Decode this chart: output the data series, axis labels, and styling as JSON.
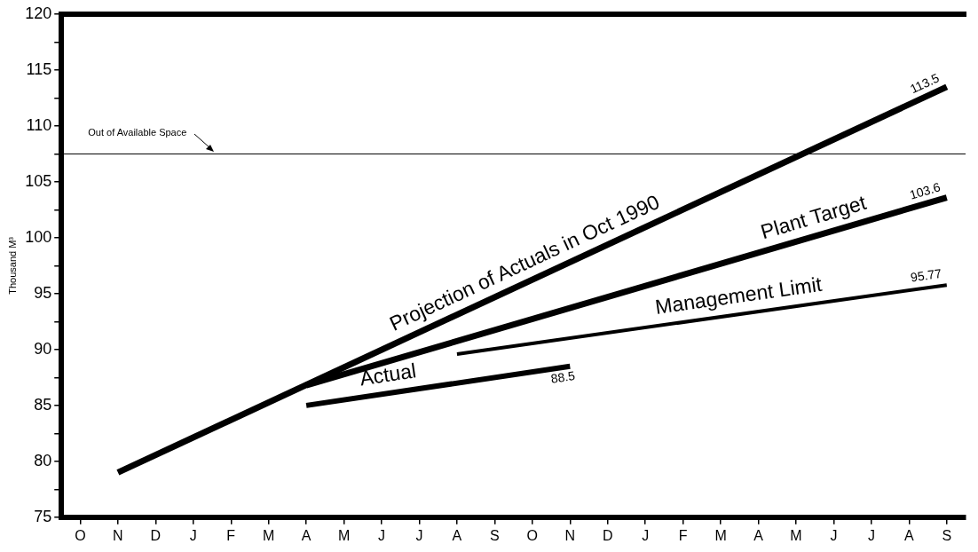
{
  "chart_data": {
    "type": "line",
    "ylabel": "Thousand M³",
    "categories": [
      "O",
      "N",
      "D",
      "J",
      "F",
      "M",
      "A",
      "M",
      "J",
      "J",
      "A",
      "S",
      "O",
      "N",
      "D",
      "J",
      "F",
      "M",
      "A",
      "M",
      "J",
      "J",
      "A",
      "S"
    ],
    "series": [
      {
        "name": "Projection of Actuals in Oct 1990",
        "color": "#000000",
        "values": [
          null,
          79,
          null,
          null,
          null,
          null,
          null,
          null,
          null,
          null,
          null,
          null,
          null,
          null,
          null,
          null,
          null,
          null,
          null,
          null,
          null,
          null,
          null,
          113.5
        ],
        "value_labels": [
          null,
          null,
          null,
          null,
          null,
          null,
          null,
          null,
          null,
          null,
          null,
          null,
          null,
          null,
          null,
          null,
          null,
          null,
          null,
          null,
          null,
          null,
          null,
          "113.5"
        ]
      },
      {
        "name": "Plant Target",
        "color": "#000000",
        "values": [
          null,
          null,
          null,
          null,
          null,
          null,
          86.8,
          null,
          null,
          null,
          null,
          null,
          null,
          null,
          null,
          null,
          null,
          null,
          null,
          null,
          null,
          null,
          null,
          103.6
        ],
        "value_labels": [
          null,
          null,
          null,
          null,
          null,
          null,
          null,
          null,
          null,
          null,
          null,
          null,
          null,
          null,
          null,
          null,
          null,
          null,
          null,
          null,
          null,
          null,
          null,
          "103.6"
        ]
      },
      {
        "name": "Management Limit",
        "color": "#000000",
        "values": [
          null,
          null,
          null,
          null,
          null,
          null,
          null,
          null,
          null,
          null,
          89.6,
          null,
          null,
          null,
          null,
          null,
          null,
          null,
          null,
          null,
          null,
          null,
          null,
          95.77
        ],
        "value_labels": [
          null,
          null,
          null,
          null,
          null,
          null,
          null,
          null,
          null,
          null,
          null,
          null,
          null,
          null,
          null,
          null,
          null,
          null,
          null,
          null,
          null,
          null,
          null,
          "95.77"
        ]
      },
      {
        "name": "Actual",
        "color": "#000000",
        "values": [
          null,
          null,
          null,
          null,
          null,
          null,
          85,
          null,
          null,
          null,
          null,
          null,
          null,
          88.5,
          null,
          null,
          null,
          null,
          null,
          null,
          null,
          null,
          null,
          null
        ],
        "value_labels": [
          null,
          null,
          null,
          null,
          null,
          null,
          null,
          null,
          null,
          null,
          null,
          null,
          null,
          "88.5",
          null,
          null,
          null,
          null,
          null,
          null,
          null,
          null,
          null,
          null
        ]
      }
    ],
    "ylim": [
      75,
      120
    ],
    "yticks": [
      75,
      {
        "value": 77.5,
        "label": null
      },
      80,
      {
        "value": 82.5,
        "label": null
      },
      85,
      {
        "value": 87.5,
        "label": null
      },
      90,
      {
        "value": 92.5,
        "label": null
      },
      95,
      {
        "value": 97.5,
        "label": null
      },
      100,
      {
        "value": 102.5,
        "label": null
      },
      105,
      {
        "value": 107.5,
        "label": null
      },
      110,
      {
        "value": 112.5,
        "label": null
      },
      115,
      {
        "value": 117.5,
        "label": null
      },
      120
    ],
    "ref_lines": [
      {
        "axis": "y",
        "value": 107.5,
        "label": "Out of Available Space",
        "color": "#000000"
      }
    ],
    "grid": false,
    "legend": false,
    "marker": "none",
    "line_style": "solid"
  }
}
